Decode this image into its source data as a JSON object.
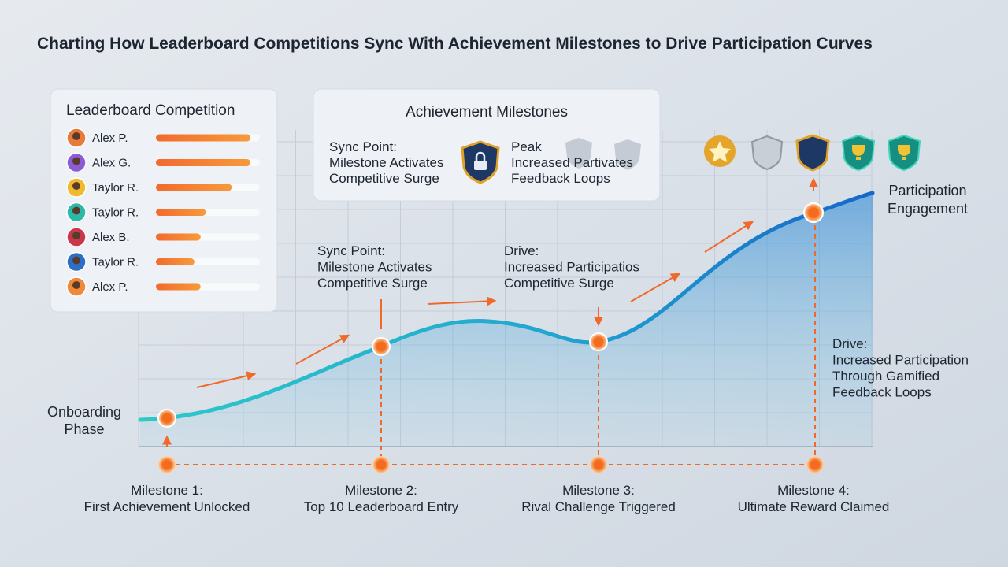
{
  "title": "Charting How Leaderboard Competitions Sync With Achievement Milestones to Drive Participation Curves",
  "leaderboard": {
    "title": "Leaderboard Competition",
    "entries": [
      {
        "name": "Alex P.",
        "score": 91
      },
      {
        "name": "Alex G.",
        "score": 91
      },
      {
        "name": "Taylor R.",
        "score": 73
      },
      {
        "name": "Taylor R.",
        "score": 48
      },
      {
        "name": "Alex B.",
        "score": 43
      },
      {
        "name": "Taylor R.",
        "score": 37
      },
      {
        "name": "Alex P.",
        "score": 43
      }
    ]
  },
  "achievements": {
    "title": "Achievement Milestones",
    "left": {
      "heading": "Sync Point:",
      "lines": [
        "Milestone Activates",
        "Competitive Surge"
      ]
    },
    "right": {
      "heading": "Peak",
      "lines": [
        "Increased Partivates",
        "Feedback Loops"
      ]
    }
  },
  "curve_labels": {
    "start": [
      "Onboarding",
      "Phase"
    ],
    "end": [
      "Participation",
      "Engagement"
    ]
  },
  "annotations": [
    {
      "heading": "Sync Point:",
      "lines": [
        "Milestone Activates",
        "Competitive Surge"
      ]
    },
    {
      "heading": "Drive:",
      "lines": [
        "Increased Participatios",
        "Competitive Surge"
      ]
    },
    {
      "heading": "Drive:",
      "lines": [
        "Increased Participation",
        "Through Gamified",
        "Feedback Loops"
      ]
    }
  ],
  "milestones": [
    {
      "title": "Milestone 1:",
      "desc": "First Achievement Unlocked"
    },
    {
      "title": "Milestone 2:",
      "desc": "Top 10 Leaderboard Entry"
    },
    {
      "title": "Milestone 3:",
      "desc": "Rival Challenge Triggered"
    },
    {
      "title": "Milestone 4:",
      "desc": "Ultimate Reward Claimed"
    }
  ]
}
